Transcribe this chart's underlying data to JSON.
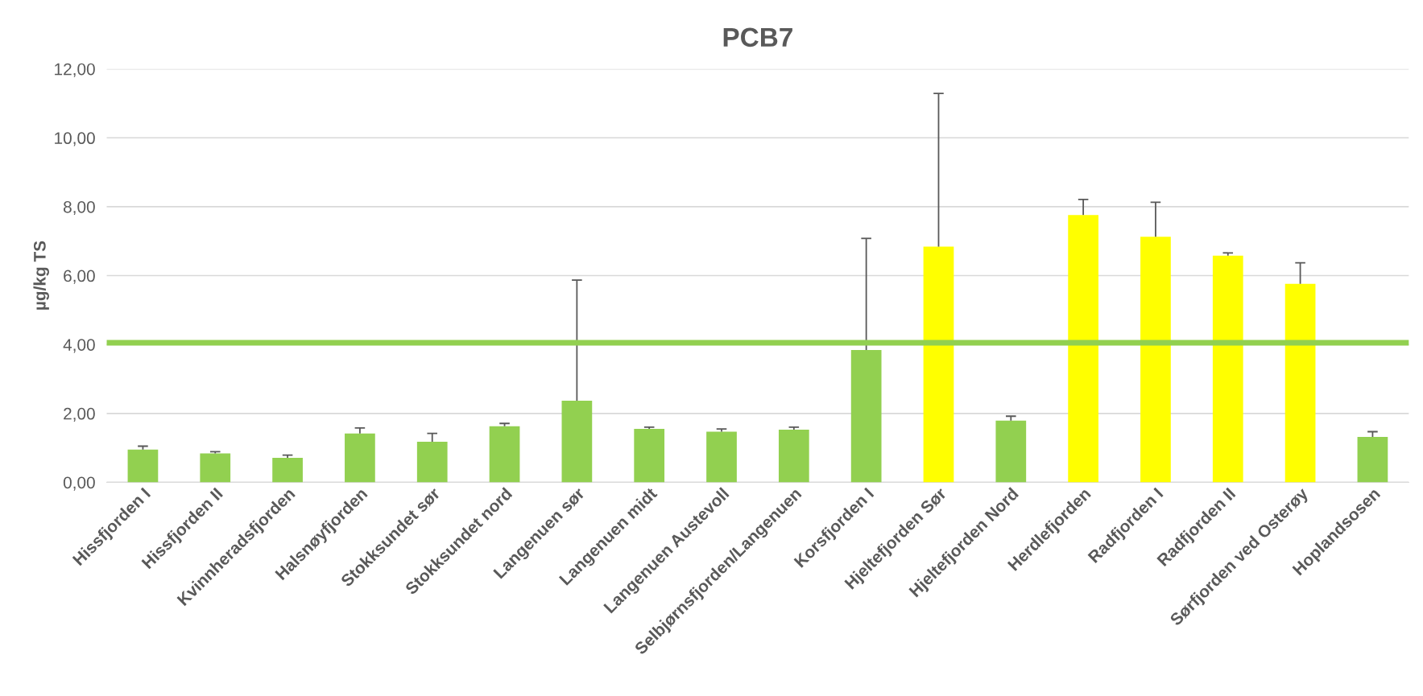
{
  "chart_data": {
    "type": "bar",
    "title": "PCB7",
    "ylabel": "µg/kg TS",
    "categories": [
      "Hissfjorden I",
      "Hissfjorden II",
      "Kvinnheradsfjorden",
      "Halsnøyfjorden",
      "Stokksundet sør",
      "Stokksundet nord",
      "Langenuen sør",
      "Langenuen midt",
      "Langenuen Austevoll",
      "Selbjørnsfjorden/Langenuen",
      "Korsfjorden I",
      "Hjeltefjorden Sør",
      "Hjeltefjorden Nord",
      "Herdlefjorden",
      "Radfjorden I",
      "Radfjorden II",
      "Sørfjorden ved Osterøy",
      "Hoplandsosen"
    ],
    "values": [
      0.95,
      0.84,
      0.71,
      1.42,
      1.18,
      1.63,
      2.37,
      1.55,
      1.47,
      1.53,
      3.84,
      6.84,
      1.79,
      7.76,
      7.13,
      6.58,
      5.76,
      1.32
    ],
    "colors": [
      "#92d050",
      "#92d050",
      "#92d050",
      "#92d050",
      "#92d050",
      "#92d050",
      "#92d050",
      "#92d050",
      "#92d050",
      "#92d050",
      "#92d050",
      "#ffff00",
      "#92d050",
      "#ffff00",
      "#ffff00",
      "#ffff00",
      "#ffff00",
      "#92d050"
    ],
    "errors": [
      [
        0.95,
        1.05
      ],
      [
        0.84,
        0.89
      ],
      [
        0.71,
        0.79
      ],
      [
        1.42,
        1.58
      ],
      [
        1.18,
        1.42
      ],
      [
        1.63,
        1.71
      ],
      [
        2.37,
        5.87
      ],
      [
        1.55,
        1.6
      ],
      [
        1.47,
        1.55
      ],
      [
        1.53,
        1.6
      ],
      [
        3.84,
        7.08
      ],
      [
        6.84,
        11.29
      ],
      [
        1.79,
        1.92
      ],
      [
        7.76,
        8.21
      ],
      [
        7.13,
        8.13
      ],
      [
        6.58,
        6.66
      ],
      [
        5.76,
        6.37
      ],
      [
        1.32,
        1.47
      ]
    ],
    "ylim": [
      0,
      12
    ],
    "yticks": [
      {
        "value": 0,
        "label": "0,00"
      },
      {
        "value": 2,
        "label": "2,00"
      },
      {
        "value": 4,
        "label": "4,00"
      },
      {
        "value": 6,
        "label": "6,00"
      },
      {
        "value": 8,
        "label": "8,00"
      },
      {
        "value": 10,
        "label": "10,00"
      },
      {
        "value": 12,
        "label": "12,00"
      }
    ],
    "grid": "y",
    "ref_lines": [
      {
        "axis": "y",
        "value": 4.05,
        "label": null,
        "color": "#92d050"
      }
    ]
  }
}
